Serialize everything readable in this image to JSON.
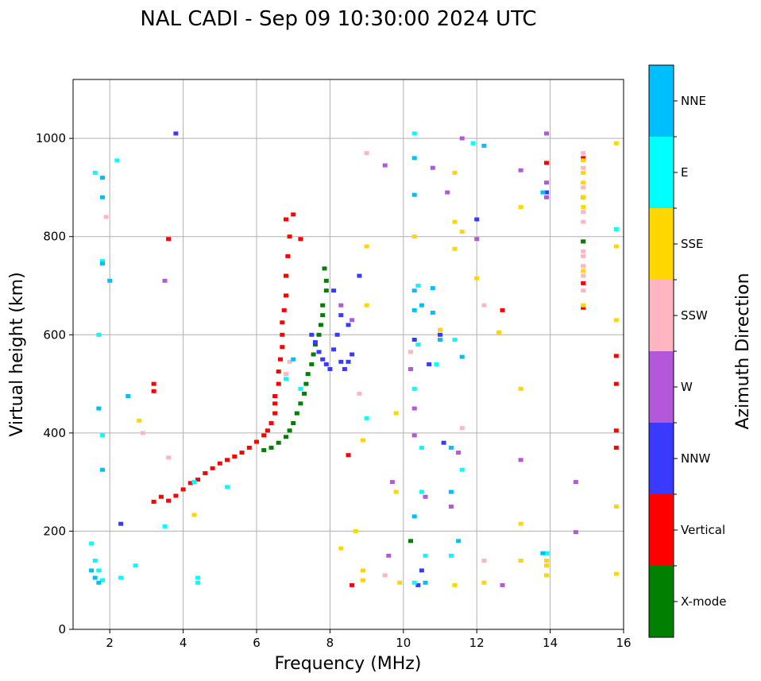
{
  "chart_data": {
    "type": "scatter",
    "title": "NAL CADI - Sep 09 10:30:00 2024 UTC",
    "xlabel": "Frequency (MHz)",
    "ylabel": "Virtual height (km)",
    "xlim": [
      1,
      16
    ],
    "ylim": [
      0,
      1120
    ],
    "xticks": [
      2,
      4,
      6,
      8,
      10,
      12,
      14,
      16
    ],
    "yticks": [
      0,
      200,
      400,
      600,
      800,
      1000
    ],
    "grid": true,
    "colorbar": {
      "label": "Azimuth Direction",
      "categories": [
        {
          "name": "X-mode",
          "color": "#008000"
        },
        {
          "name": "Vertical",
          "color": "#ff0000"
        },
        {
          "name": "NNW",
          "color": "#3a3aff"
        },
        {
          "name": "W",
          "color": "#b358d8"
        },
        {
          "name": "SSW",
          "color": "#ffb6c1"
        },
        {
          "name": "SSE",
          "color": "#ffd700"
        },
        {
          "name": "E",
          "color": "#00ffff"
        },
        {
          "name": "NNE",
          "color": "#00bfff"
        }
      ]
    },
    "series": [
      {
        "name": "Vertical",
        "points": [
          [
            3.2,
            260
          ],
          [
            3.4,
            270
          ],
          [
            3.6,
            262
          ],
          [
            3.8,
            272
          ],
          [
            4.0,
            285
          ],
          [
            4.2,
            298
          ],
          [
            4.4,
            305
          ],
          [
            4.6,
            318
          ],
          [
            4.8,
            328
          ],
          [
            5.0,
            338
          ],
          [
            5.2,
            345
          ],
          [
            5.4,
            352
          ],
          [
            5.6,
            360
          ],
          [
            5.8,
            370
          ],
          [
            6.0,
            382
          ],
          [
            6.2,
            395
          ],
          [
            6.3,
            405
          ],
          [
            6.4,
            420
          ],
          [
            6.5,
            440
          ],
          [
            6.5,
            460
          ],
          [
            6.5,
            475
          ],
          [
            6.6,
            500
          ],
          [
            6.6,
            525
          ],
          [
            6.65,
            550
          ],
          [
            6.7,
            575
          ],
          [
            6.7,
            600
          ],
          [
            6.7,
            625
          ],
          [
            6.75,
            650
          ],
          [
            6.8,
            680
          ],
          [
            6.8,
            720
          ],
          [
            6.85,
            760
          ],
          [
            6.9,
            800
          ],
          [
            6.8,
            835
          ],
          [
            7.0,
            845
          ],
          [
            3.2,
            500
          ],
          [
            3.2,
            485
          ],
          [
            3.6,
            795
          ],
          [
            8.5,
            355
          ],
          [
            8.6,
            90
          ],
          [
            12.7,
            650
          ],
          [
            14.9,
            705
          ],
          [
            14.9,
            655
          ],
          [
            14.9,
            960
          ],
          [
            14.9,
            790
          ],
          [
            15.8,
            370
          ],
          [
            15.8,
            405
          ],
          [
            15.8,
            500
          ],
          [
            15.8,
            557
          ],
          [
            13.9,
            950
          ],
          [
            7.2,
            795
          ]
        ]
      },
      {
        "name": "X-mode",
        "points": [
          [
            6.2,
            365
          ],
          [
            6.4,
            370
          ],
          [
            6.6,
            380
          ],
          [
            6.8,
            392
          ],
          [
            6.9,
            405
          ],
          [
            7.0,
            420
          ],
          [
            7.1,
            440
          ],
          [
            7.2,
            460
          ],
          [
            7.3,
            480
          ],
          [
            7.35,
            500
          ],
          [
            7.4,
            520
          ],
          [
            7.5,
            540
          ],
          [
            7.55,
            560
          ],
          [
            7.6,
            580
          ],
          [
            7.7,
            600
          ],
          [
            7.75,
            620
          ],
          [
            7.8,
            640
          ],
          [
            7.8,
            660
          ],
          [
            7.9,
            690
          ],
          [
            7.9,
            710
          ],
          [
            7.85,
            735
          ],
          [
            10.2,
            180
          ],
          [
            14.9,
            880
          ],
          [
            14.9,
            790
          ]
        ]
      },
      {
        "name": "NNW",
        "points": [
          [
            7.5,
            600
          ],
          [
            7.6,
            585
          ],
          [
            7.7,
            565
          ],
          [
            7.8,
            550
          ],
          [
            7.9,
            540
          ],
          [
            8.0,
            530
          ],
          [
            8.1,
            570
          ],
          [
            8.2,
            600
          ],
          [
            8.3,
            640
          ],
          [
            8.5,
            620
          ],
          [
            8.3,
            545
          ],
          [
            8.4,
            530
          ],
          [
            8.5,
            545
          ],
          [
            8.6,
            560
          ],
          [
            8.1,
            690
          ],
          [
            8.8,
            720
          ],
          [
            3.8,
            1010
          ],
          [
            13.9,
            890
          ],
          [
            10.4,
            90
          ],
          [
            2.3,
            215
          ],
          [
            10.7,
            540
          ],
          [
            11.0,
            600
          ],
          [
            10.3,
            590
          ],
          [
            12.0,
            835
          ],
          [
            11.1,
            380
          ],
          [
            10.5,
            120
          ]
        ]
      },
      {
        "name": "W",
        "points": [
          [
            3.5,
            710
          ],
          [
            8.3,
            660
          ],
          [
            8.6,
            630
          ],
          [
            9.7,
            300
          ],
          [
            10.2,
            530
          ],
          [
            10.8,
            940
          ],
          [
            13.2,
            935
          ],
          [
            13.9,
            910
          ],
          [
            13.9,
            1010
          ],
          [
            13.9,
            880
          ],
          [
            9.5,
            945
          ],
          [
            10.3,
            395
          ],
          [
            11.3,
            250
          ],
          [
            11.6,
            1000
          ],
          [
            12.7,
            90
          ],
          [
            13.2,
            345
          ],
          [
            14.7,
            300
          ],
          [
            14.7,
            198
          ],
          [
            11.2,
            890
          ],
          [
            12.0,
            795
          ],
          [
            10.3,
            450
          ],
          [
            9.6,
            150
          ],
          [
            10.6,
            270
          ],
          [
            11.5,
            360
          ]
        ]
      },
      {
        "name": "SSW",
        "points": [
          [
            14.9,
            830
          ],
          [
            14.9,
            850
          ],
          [
            14.9,
            900
          ],
          [
            14.9,
            940
          ],
          [
            14.9,
            970
          ],
          [
            14.9,
            770
          ],
          [
            14.9,
            740
          ],
          [
            14.9,
            760
          ],
          [
            14.9,
            690
          ],
          [
            14.9,
            720
          ],
          [
            6.8,
            520
          ],
          [
            6.9,
            545
          ],
          [
            8.8,
            480
          ],
          [
            9.0,
            970
          ],
          [
            12.2,
            140
          ],
          [
            3.6,
            350
          ],
          [
            1.9,
            840
          ],
          [
            12.2,
            660
          ],
          [
            9.5,
            110
          ],
          [
            10.2,
            565
          ],
          [
            11.6,
            410
          ],
          [
            2.9,
            400
          ]
        ]
      },
      {
        "name": "SSE",
        "points": [
          [
            14.9,
            860
          ],
          [
            14.9,
            880
          ],
          [
            14.9,
            910
          ],
          [
            14.9,
            930
          ],
          [
            14.9,
            955
          ],
          [
            14.9,
            730
          ],
          [
            14.9,
            660
          ],
          [
            15.8,
            990
          ],
          [
            15.8,
            780
          ],
          [
            15.8,
            630
          ],
          [
            15.8,
            250
          ],
          [
            15.8,
            113
          ],
          [
            13.9,
            110
          ],
          [
            13.9,
            130
          ],
          [
            13.9,
            140
          ],
          [
            13.2,
            140
          ],
          [
            13.2,
            215
          ],
          [
            13.2,
            490
          ],
          [
            13.2,
            860
          ],
          [
            12.6,
            605
          ],
          [
            12.0,
            715
          ],
          [
            11.4,
            830
          ],
          [
            11.4,
            775
          ],
          [
            11.4,
            930
          ],
          [
            11.4,
            590
          ],
          [
            9.0,
            780
          ],
          [
            9.0,
            660
          ],
          [
            8.9,
            385
          ],
          [
            8.7,
            200
          ],
          [
            8.3,
            165
          ],
          [
            8.9,
            120
          ],
          [
            8.9,
            100
          ],
          [
            9.8,
            280
          ],
          [
            9.8,
            440
          ],
          [
            10.3,
            800
          ],
          [
            11.6,
            810
          ],
          [
            12.2,
            95
          ],
          [
            11.4,
            90
          ],
          [
            11.0,
            610
          ],
          [
            2.8,
            425
          ],
          [
            4.3,
            233
          ],
          [
            9.9,
            95
          ]
        ]
      },
      {
        "name": "E",
        "points": [
          [
            1.5,
            175
          ],
          [
            1.6,
            140
          ],
          [
            1.7,
            120
          ],
          [
            1.8,
            100
          ],
          [
            1.7,
            600
          ],
          [
            1.8,
            750
          ],
          [
            1.8,
            395
          ],
          [
            2.3,
            105
          ],
          [
            2.7,
            130
          ],
          [
            3.5,
            210
          ],
          [
            4.4,
            95
          ],
          [
            4.4,
            105
          ],
          [
            4.3,
            300
          ],
          [
            5.2,
            290
          ],
          [
            6.8,
            510
          ],
          [
            7.2,
            490
          ],
          [
            9.0,
            430
          ],
          [
            10.3,
            1010
          ],
          [
            10.4,
            700
          ],
          [
            10.4,
            580
          ],
          [
            10.5,
            370
          ],
          [
            10.5,
            280
          ],
          [
            10.9,
            540
          ],
          [
            11.6,
            325
          ],
          [
            11.9,
            990
          ],
          [
            11.4,
            590
          ],
          [
            13.9,
            155
          ],
          [
            15.8,
            815
          ],
          [
            2.2,
            955
          ],
          [
            10.3,
            490
          ],
          [
            10.6,
            150
          ],
          [
            11.3,
            150
          ],
          [
            10.3,
            95
          ],
          [
            1.6,
            930
          ]
        ]
      },
      {
        "name": "NNE",
        "points": [
          [
            1.5,
            120
          ],
          [
            1.6,
            105
          ],
          [
            1.7,
            95
          ],
          [
            1.8,
            920
          ],
          [
            1.8,
            880
          ],
          [
            1.8,
            745
          ],
          [
            1.7,
            450
          ],
          [
            1.8,
            325
          ],
          [
            2.0,
            710
          ],
          [
            2.5,
            475
          ],
          [
            7.0,
            550
          ],
          [
            10.3,
            960
          ],
          [
            10.3,
            885
          ],
          [
            10.3,
            650
          ],
          [
            10.3,
            690
          ],
          [
            10.5,
            660
          ],
          [
            10.8,
            645
          ],
          [
            10.8,
            695
          ],
          [
            11.0,
            590
          ],
          [
            11.3,
            370
          ],
          [
            11.3,
            280
          ],
          [
            11.5,
            180
          ],
          [
            12.2,
            985
          ],
          [
            13.8,
            155
          ],
          [
            13.8,
            890
          ],
          [
            10.6,
            95
          ],
          [
            10.3,
            230
          ],
          [
            11.6,
            555
          ]
        ]
      }
    ]
  }
}
